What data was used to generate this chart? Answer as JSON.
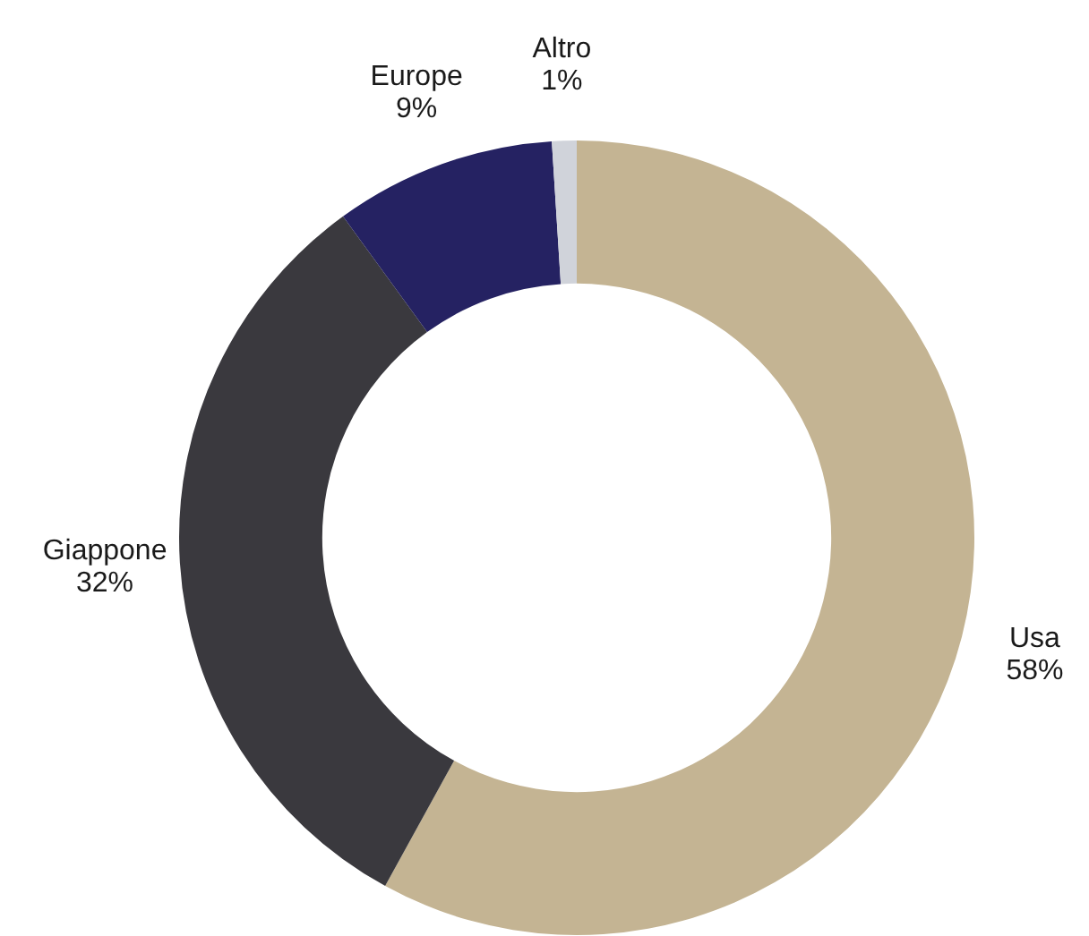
{
  "chart_data": {
    "type": "donut",
    "categories": [
      "Usa",
      "Giappone",
      "Europe",
      "Altro"
    ],
    "values": [
      58,
      32,
      9,
      1
    ],
    "colors": [
      "#c4b493",
      "#3a393e",
      "#252262",
      "#d0d3da"
    ],
    "value_labels": [
      "58%",
      "32%",
      "9%",
      "1%"
    ],
    "legend": false
  }
}
